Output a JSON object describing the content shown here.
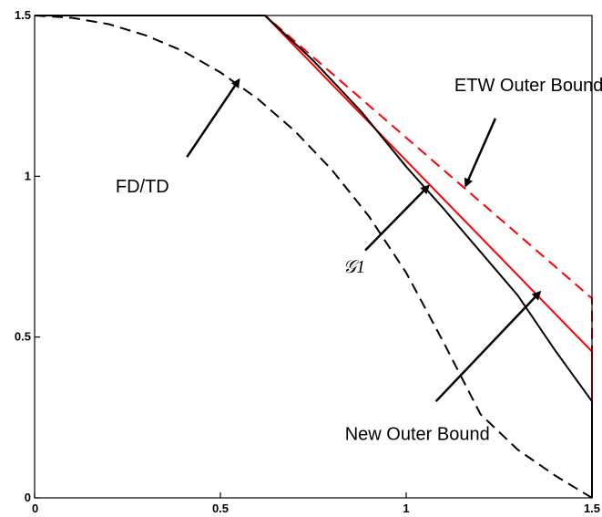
{
  "chart_data": {
    "type": "line",
    "title": "",
    "xlabel": "",
    "ylabel": "",
    "xlim": [
      0,
      1.5
    ],
    "ylim": [
      0,
      1.5
    ],
    "grid": false,
    "x_ticks": [
      "0",
      "0.5",
      "1",
      "1.5"
    ],
    "x_tick_values": [
      0,
      0.5,
      1,
      1.5
    ],
    "y_ticks": [
      "0",
      "0.5",
      "1",
      "1.5"
    ],
    "y_tick_values": [
      0,
      0.5,
      1,
      1.5
    ],
    "series": [
      {
        "color": "#ff0000",
        "dash": true,
        "points": [
          [
            0,
            1.5
          ],
          [
            0.62,
            1.5
          ],
          [
            1.5,
            0.62
          ],
          [
            1.5,
            0
          ]
        ]
      },
      {
        "color": "#ff0000",
        "dash": false,
        "points": [
          [
            0,
            1.5
          ],
          [
            0.62,
            1.5
          ],
          [
            1.5,
            0.455
          ],
          [
            1.5,
            0
          ]
        ]
      },
      {
        "color": "#000000",
        "dash": false,
        "points": [
          [
            0,
            1.5
          ],
          [
            0.62,
            1.5
          ],
          [
            0.75,
            1.36
          ],
          [
            0.88,
            1.2
          ],
          [
            1.0,
            1.03
          ],
          [
            1.1,
            0.9
          ],
          [
            1.2,
            0.765
          ],
          [
            1.3,
            0.63
          ],
          [
            1.4,
            0.46
          ],
          [
            1.5,
            0.3
          ],
          [
            1.5,
            0
          ]
        ]
      },
      {
        "color": "#000000",
        "dash": true,
        "points": [
          [
            0,
            1.5
          ],
          [
            0.1,
            1.493
          ],
          [
            0.2,
            1.473
          ],
          [
            0.3,
            1.438
          ],
          [
            0.4,
            1.389
          ],
          [
            0.5,
            1.323
          ],
          [
            0.6,
            1.241
          ],
          [
            0.7,
            1.141
          ],
          [
            0.8,
            1.02
          ],
          [
            0.9,
            0.875
          ],
          [
            1.0,
            0.7
          ],
          [
            1.1,
            0.485
          ],
          [
            1.2,
            0.26
          ],
          [
            1.3,
            0.15
          ],
          [
            1.4,
            0.07
          ],
          [
            1.5,
            0.0
          ]
        ]
      }
    ],
    "annotations": [
      {
        "text": "FD/TD",
        "label_at": [
          0.29,
          0.95
        ],
        "arrow_from": [
          0.41,
          1.06
        ],
        "arrow_to": [
          0.55,
          1.3
        ],
        "style": "plain"
      },
      {
        "text": "ETW Outer Bound",
        "label_at": [
          1.33,
          1.265
        ],
        "arrow_from": [
          1.24,
          1.18
        ],
        "arrow_to": [
          1.16,
          0.97
        ],
        "style": "plain"
      },
      {
        "text": "𝒢1",
        "label_at": [
          0.86,
          0.7
        ],
        "arrow_from": [
          0.89,
          0.77
        ],
        "arrow_to": [
          1.06,
          0.97
        ],
        "style": "italic"
      },
      {
        "text": "New Outer Bound",
        "label_at": [
          1.03,
          0.18
        ],
        "arrow_from": [
          1.08,
          0.3
        ],
        "arrow_to": [
          1.36,
          0.64
        ],
        "style": "plain"
      }
    ]
  }
}
